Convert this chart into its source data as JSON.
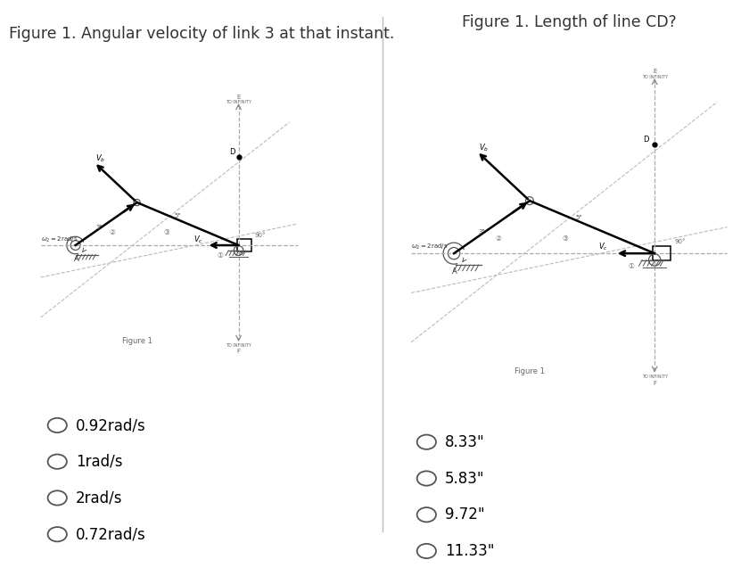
{
  "panel1_title": "Figure 1. Angular velocity of link 3 at that instant.",
  "panel2_title": "Figure 1. Length of line CD?",
  "panel1_options": [
    "0.92rad/s",
    "1rad/s",
    "2rad/s",
    "0.72rad/s"
  ],
  "panel2_options": [
    "8.33\"",
    "5.83\"",
    "9.72\"",
    "11.33\""
  ],
  "bg_panel": "#e8eef4",
  "bg_inner": "#ffffff",
  "fig_bg": "#ffffff",
  "title_color": "#333333",
  "title_fontsize": 12.5,
  "option_fontsize": 12,
  "circle_color": "#555555"
}
